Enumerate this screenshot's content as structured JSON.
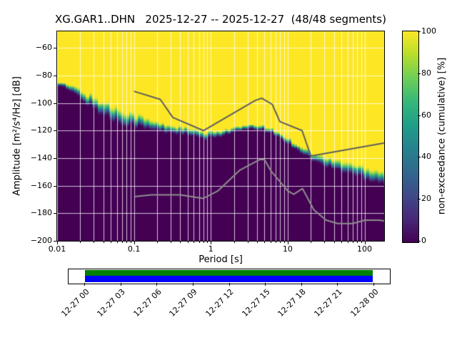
{
  "title": "XG.GAR1..DHN   2025-12-27 -- 2025-12-27  (48/48 segments)",
  "axes": {
    "xlabel": "Period [s]",
    "ylabel": "Amplitude [m²/s⁴/Hz] [dB]",
    "x_ticks": [
      0.01,
      0.1,
      1,
      10,
      100
    ],
    "x_tick_labels": [
      "0.01",
      "0.1",
      "1",
      "10",
      "100"
    ],
    "y_ticks": [
      -60,
      -80,
      -100,
      -120,
      -140,
      -160,
      -180,
      -200
    ],
    "y_tick_labels": [
      "−60",
      "−80",
      "−100",
      "−120",
      "−140",
      "−160",
      "−180",
      "−200"
    ]
  },
  "colorbar": {
    "label": "non-exceedance (cumulative) [%]",
    "ticks": [
      0,
      20,
      40,
      60,
      80,
      100
    ],
    "tick_labels": [
      "0",
      "20",
      "40",
      "60",
      "80",
      "100"
    ],
    "gradient_stops": [
      "#440154",
      "#482878",
      "#3e4a89",
      "#31688e",
      "#26828e",
      "#1f9e89",
      "#35b779",
      "#6ece58",
      "#b5de2b",
      "#fde725"
    ]
  },
  "colors": {
    "background": "#ffffff",
    "grid": "rgba(255,255,255,0.75)",
    "nhnm_line": "#5e5e5e",
    "nlnm_line": "#8e8e8e",
    "coverage_green": "#008000",
    "coverage_blue": "#0000ff",
    "cmap_low": "#440154",
    "cmap_high": "#fde725"
  },
  "chart_data": {
    "type": "heatmap",
    "subtype": "ppsd-cumulative",
    "station_id": "XG.GAR1..DHN",
    "date_start": "2025-12-27",
    "date_end": "2025-12-27",
    "segments_used": 48,
    "segments_total": 48,
    "title": "XG.GAR1..DHN   2025-12-27 -- 2025-12-27  (48/48 segments)",
    "xlabel": "Period [s]",
    "ylabel": "Amplitude [m²/s⁴/Hz] [dB]",
    "zlabel": "non-exceedance (cumulative) [%]",
    "x_scale": "log",
    "xlim": [
      0.01,
      180
    ],
    "ylim": [
      -200,
      -48
    ],
    "zlim": [
      0,
      100
    ],
    "colormap": "viridis",
    "grid": true,
    "boundary_columns": [
      "period_s",
      "db_median",
      "db_halfwidth"
    ],
    "cumulative_boundary": [
      [
        0.01,
        -86,
        2
      ],
      [
        0.013,
        -88,
        2
      ],
      [
        0.017,
        -91,
        3
      ],
      [
        0.022,
        -95,
        4
      ],
      [
        0.03,
        -100,
        5
      ],
      [
        0.04,
        -104,
        6
      ],
      [
        0.055,
        -108,
        6
      ],
      [
        0.075,
        -110,
        6
      ],
      [
        0.1,
        -112,
        5
      ],
      [
        0.14,
        -115,
        5
      ],
      [
        0.19,
        -117,
        4
      ],
      [
        0.26,
        -118.5,
        3.5
      ],
      [
        0.36,
        -119.5,
        3
      ],
      [
        0.5,
        -121,
        3
      ],
      [
        0.7,
        -123,
        3
      ],
      [
        0.9,
        -124,
        3
      ],
      [
        1.2,
        -122.5,
        2.5
      ],
      [
        1.7,
        -120.5,
        2
      ],
      [
        2.3,
        -119,
        2
      ],
      [
        3,
        -118,
        2
      ],
      [
        4,
        -117.8,
        2
      ],
      [
        5,
        -118.5,
        2
      ],
      [
        6.5,
        -121,
        2
      ],
      [
        8,
        -124,
        2
      ],
      [
        10,
        -127.5,
        2.5
      ],
      [
        13,
        -131.5,
        2.5
      ],
      [
        17,
        -135.5,
        3
      ],
      [
        22,
        -139.5,
        3
      ],
      [
        30,
        -142.5,
        4
      ],
      [
        40,
        -144.5,
        4
      ],
      [
        55,
        -146.5,
        5
      ],
      [
        75,
        -148.5,
        5
      ],
      [
        100,
        -150.5,
        5
      ],
      [
        140,
        -152.5,
        5
      ],
      [
        180,
        -154,
        5
      ]
    ],
    "noise_models": {
      "high_noise_model": [
        [
          0.1,
          -91.5
        ],
        [
          0.22,
          -97.4
        ],
        [
          0.32,
          -110.5
        ],
        [
          0.8,
          -120.0
        ],
        [
          3.8,
          -98.1
        ],
        [
          4.6,
          -96.5
        ],
        [
          6.3,
          -101.0
        ],
        [
          7.9,
          -113.5
        ],
        [
          15.4,
          -120.0
        ],
        [
          20.0,
          -138.5
        ],
        [
          180.0,
          -129.0
        ]
      ],
      "low_noise_model": [
        [
          0.1,
          -168.0
        ],
        [
          0.17,
          -166.7
        ],
        [
          0.4,
          -166.7
        ],
        [
          0.8,
          -169.2
        ],
        [
          1.24,
          -163.7
        ],
        [
          2.4,
          -148.6
        ],
        [
          4.3,
          -141.1
        ],
        [
          5.0,
          -141.1
        ],
        [
          6.0,
          -149.0
        ],
        [
          10.0,
          -163.8
        ],
        [
          12.0,
          -166.2
        ],
        [
          15.6,
          -162.1
        ],
        [
          21.9,
          -177.5
        ],
        [
          31.6,
          -185.0
        ],
        [
          45.0,
          -187.5
        ],
        [
          70.0,
          -187.5
        ],
        [
          101.0,
          -185.0
        ],
        [
          154.0,
          -185.0
        ],
        [
          180.0,
          -185.5
        ]
      ]
    }
  },
  "timeline": {
    "labels": [
      "12-27 00",
      "12-27 03",
      "12-27 06",
      "12-27 09",
      "12-27 12",
      "12-27 15",
      "12-27 18",
      "12-27 21",
      "12-28 00"
    ],
    "coverage_start_frac": 0.051,
    "coverage_end_frac": 0.951
  }
}
